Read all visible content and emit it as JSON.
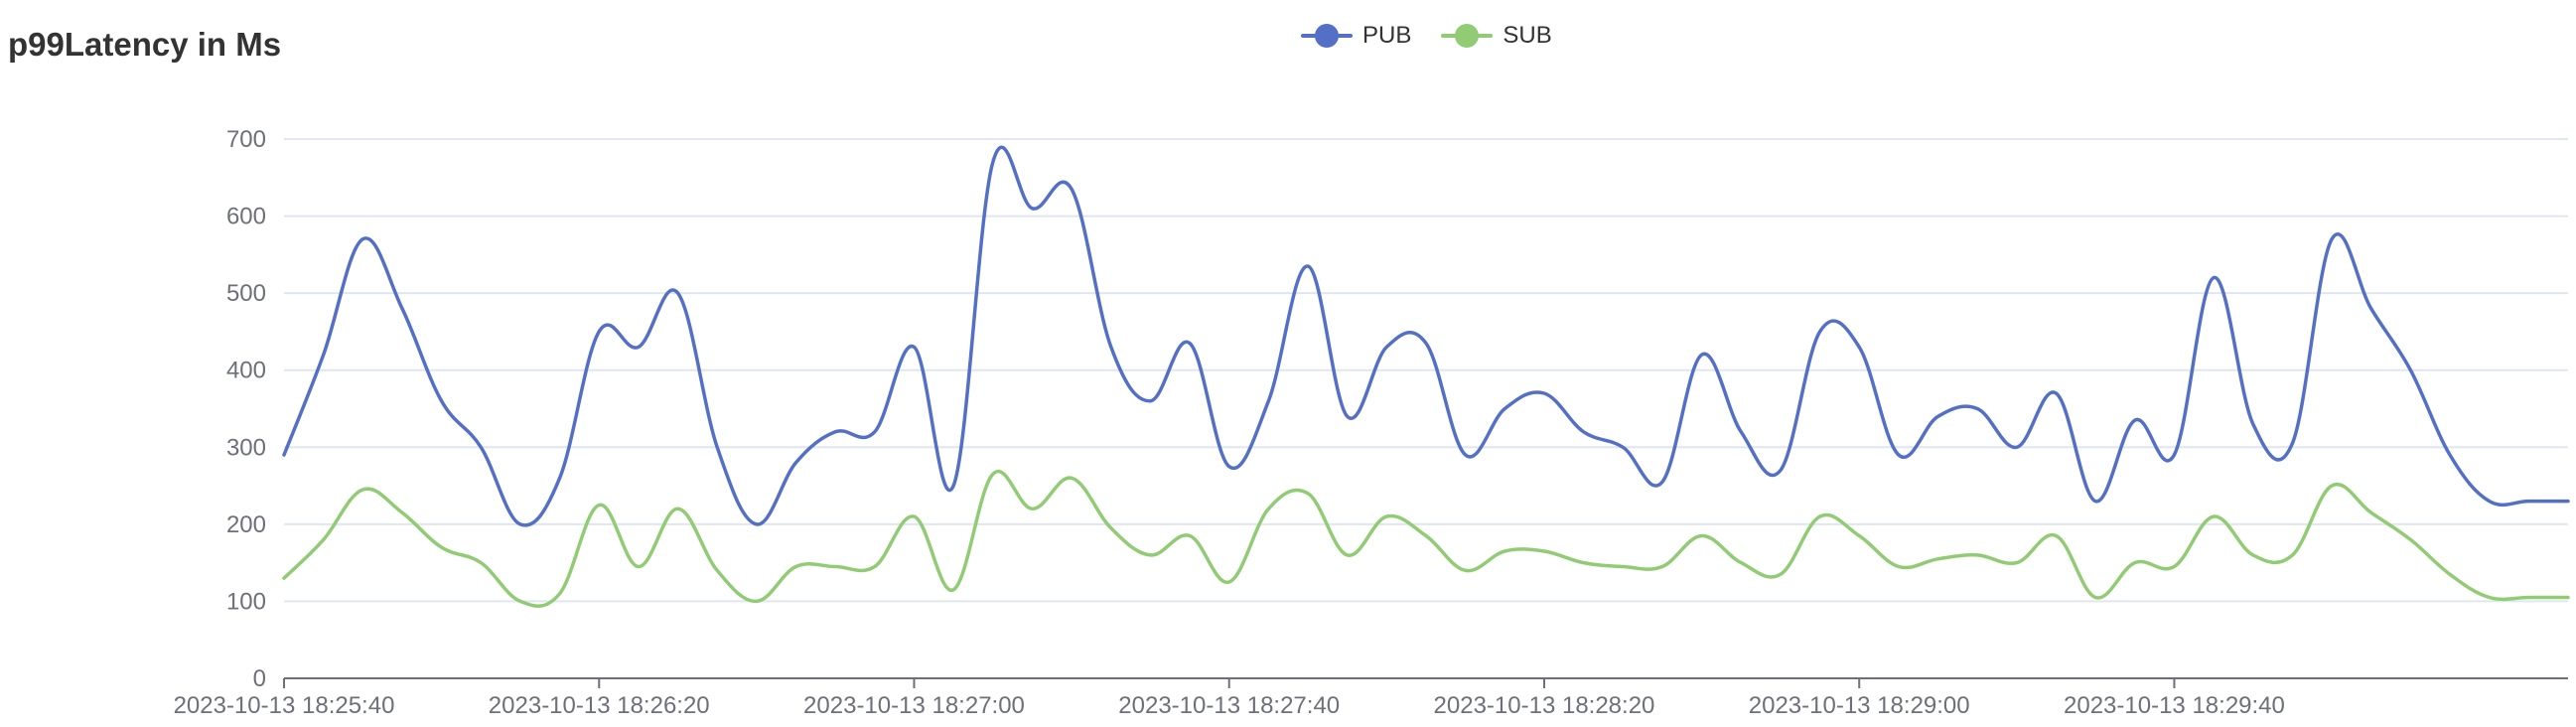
{
  "chart_data": {
    "type": "line",
    "title": "p99Latency in Ms",
    "xlabel": "",
    "ylabel": "",
    "ylim": [
      0,
      700
    ],
    "yticks": [
      "0",
      "100",
      "200",
      "300",
      "400",
      "500",
      "600",
      "700"
    ],
    "xticks": [
      "2023-10-13 18:25:40",
      "2023-10-13 18:26:20",
      "2023-10-13 18:27:00",
      "2023-10-13 18:27:40",
      "2023-10-13 18:28:20",
      "2023-10-13 18:29:00",
      "2023-10-13 18:29:40"
    ],
    "grid": true,
    "legend_position": "top-center",
    "x": [
      "18:25:40",
      "18:25:45",
      "18:25:50",
      "18:25:55",
      "18:26:00",
      "18:26:05",
      "18:26:10",
      "18:26:15",
      "18:26:20",
      "18:26:25",
      "18:26:30",
      "18:26:35",
      "18:26:40",
      "18:26:45",
      "18:26:50",
      "18:26:55",
      "18:27:00",
      "18:27:05",
      "18:27:10",
      "18:27:15",
      "18:27:20",
      "18:27:25",
      "18:27:30",
      "18:27:35",
      "18:27:40",
      "18:27:45",
      "18:27:50",
      "18:27:55",
      "18:28:00",
      "18:28:05",
      "18:28:10",
      "18:28:15",
      "18:28:20",
      "18:28:25",
      "18:28:30",
      "18:28:35",
      "18:28:40",
      "18:28:45",
      "18:28:50",
      "18:28:55",
      "18:29:00",
      "18:29:05",
      "18:29:10",
      "18:29:15",
      "18:29:20",
      "18:29:25",
      "18:29:30",
      "18:29:35",
      "18:29:40",
      "18:29:45",
      "18:29:50",
      "18:29:55",
      "18:30:00",
      "18:30:05",
      "18:30:10",
      "18:30:15",
      "18:30:20",
      "18:30:25",
      "18:30:30"
    ],
    "series": [
      {
        "name": "PUB",
        "color": "#5470c6",
        "values": [
          290,
          420,
          570,
          480,
          360,
          300,
          200,
          260,
          450,
          430,
          500,
          300,
          200,
          280,
          320,
          320,
          430,
          250,
          670,
          610,
          635,
          430,
          360,
          435,
          275,
          360,
          535,
          340,
          430,
          435,
          290,
          350,
          370,
          320,
          300,
          255,
          420,
          320,
          270,
          450,
          430,
          290,
          340,
          350,
          300,
          370,
          230,
          335,
          290,
          520,
          330,
          305,
          570,
          480,
          400,
          290,
          230,
          230,
          230
        ]
      },
      {
        "name": "SUB",
        "color": "#91cc75",
        "values": [
          130,
          180,
          245,
          215,
          170,
          150,
          100,
          110,
          225,
          145,
          220,
          140,
          100,
          145,
          145,
          145,
          210,
          115,
          265,
          220,
          260,
          195,
          160,
          185,
          125,
          220,
          240,
          160,
          210,
          185,
          140,
          165,
          165,
          150,
          145,
          145,
          185,
          150,
          135,
          210,
          185,
          145,
          155,
          160,
          150,
          185,
          105,
          150,
          145,
          210,
          160,
          160,
          250,
          215,
          180,
          135,
          105,
          105,
          105
        ]
      }
    ]
  }
}
